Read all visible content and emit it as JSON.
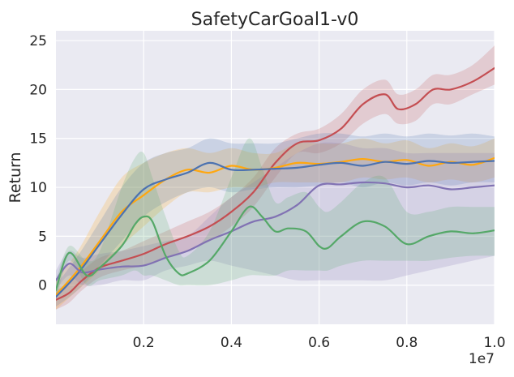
{
  "chart_data": {
    "type": "line",
    "title": "SafetyCarGoal1-v0",
    "xlabel": "",
    "ylabel": "Return",
    "x_offset_label": "1e7",
    "xlim": [
      0,
      1.0
    ],
    "ylim": [
      -4,
      26
    ],
    "xticks": [
      0.2,
      0.4,
      0.6,
      0.8,
      1.0
    ],
    "xtick_labels": [
      "0.2",
      "0.4",
      "0.6",
      "0.8",
      "1.0"
    ],
    "yticks": [
      0,
      5,
      10,
      15,
      20,
      25
    ],
    "ytick_labels": [
      "0",
      "5",
      "10",
      "15",
      "20",
      "25"
    ],
    "grid": true,
    "background": "#eaeaf2",
    "series": [
      {
        "name": "red",
        "color": "#c44e52",
        "x": [
          0,
          0.03,
          0.06,
          0.1,
          0.15,
          0.2,
          0.25,
          0.3,
          0.35,
          0.4,
          0.45,
          0.5,
          0.55,
          0.6,
          0.65,
          0.7,
          0.75,
          0.78,
          0.82,
          0.86,
          0.9,
          0.95,
          1.0
        ],
        "values": [
          -1.5,
          -0.8,
          0.5,
          1.8,
          2.5,
          3.2,
          4.2,
          5.0,
          6.0,
          7.5,
          9.5,
          12.5,
          14.5,
          14.8,
          16.0,
          18.5,
          19.5,
          18.0,
          18.5,
          20.0,
          20.0,
          20.8,
          22.2
        ],
        "lower": [
          -2.5,
          -1.8,
          -0.5,
          0.8,
          1.5,
          2.0,
          2.8,
          3.5,
          4.5,
          6.0,
          8.0,
          11.0,
          13.5,
          13.5,
          14.5,
          16.5,
          17.5,
          16.5,
          16.8,
          18.5,
          18.5,
          19.5,
          20.5
        ],
        "upper": [
          -0.5,
          0.2,
          1.5,
          2.8,
          3.5,
          4.5,
          5.5,
          6.5,
          7.5,
          9.0,
          11.0,
          14.0,
          15.5,
          16.0,
          17.5,
          20.0,
          21.0,
          19.5,
          20.0,
          21.5,
          21.5,
          22.5,
          24.5
        ]
      },
      {
        "name": "orange",
        "color": "#ffa70f",
        "x": [
          0,
          0.05,
          0.1,
          0.15,
          0.2,
          0.25,
          0.3,
          0.35,
          0.4,
          0.45,
          0.5,
          0.55,
          0.6,
          0.65,
          0.7,
          0.75,
          0.8,
          0.85,
          0.9,
          0.95,
          1.0
        ],
        "values": [
          -1.0,
          1.5,
          4.5,
          7.5,
          9.2,
          10.8,
          11.8,
          11.5,
          12.2,
          11.8,
          12.0,
          12.5,
          12.4,
          12.6,
          12.9,
          12.6,
          12.8,
          12.2,
          12.6,
          12.3,
          13.0
        ],
        "lower": [
          -2.5,
          -0.5,
          1.5,
          4.0,
          6.0,
          8.0,
          9.5,
          9.5,
          10.0,
          10.0,
          10.5,
          10.5,
          10.5,
          10.5,
          11.0,
          10.8,
          11.0,
          10.5,
          10.8,
          10.5,
          11.0
        ],
        "upper": [
          0.5,
          3.5,
          7.5,
          11.0,
          12.5,
          13.5,
          14.0,
          13.5,
          14.0,
          13.5,
          13.5,
          14.5,
          14.5,
          14.5,
          15.0,
          14.5,
          14.8,
          14.0,
          14.5,
          14.2,
          15.0
        ]
      },
      {
        "name": "blue",
        "color": "#4c72b0",
        "x": [
          0,
          0.05,
          0.1,
          0.15,
          0.2,
          0.25,
          0.3,
          0.35,
          0.4,
          0.45,
          0.5,
          0.55,
          0.6,
          0.65,
          0.7,
          0.75,
          0.8,
          0.85,
          0.9,
          0.95,
          1.0
        ],
        "values": [
          -1.2,
          1.2,
          4.2,
          7.2,
          9.8,
          10.8,
          11.5,
          12.5,
          11.8,
          11.8,
          11.9,
          12.0,
          12.3,
          12.5,
          12.2,
          12.6,
          12.4,
          12.7,
          12.5,
          12.6,
          12.7
        ],
        "lower": [
          -2.2,
          -0.5,
          2.0,
          4.5,
          7.0,
          8.5,
          9.5,
          10.0,
          9.5,
          9.8,
          10.0,
          10.0,
          10.2,
          10.5,
          10.0,
          10.5,
          10.2,
          10.5,
          10.2,
          10.5,
          10.5
        ],
        "upper": [
          0.0,
          3.0,
          6.5,
          10.0,
          12.5,
          13.5,
          14.0,
          15.0,
          14.5,
          14.5,
          14.5,
          15.0,
          15.5,
          15.5,
          15.2,
          15.5,
          15.2,
          15.5,
          15.3,
          15.5,
          15.2
        ]
      },
      {
        "name": "purple",
        "color": "#8172b3",
        "x": [
          0,
          0.03,
          0.06,
          0.1,
          0.15,
          0.2,
          0.25,
          0.3,
          0.35,
          0.4,
          0.45,
          0.5,
          0.55,
          0.6,
          0.65,
          0.7,
          0.75,
          0.8,
          0.85,
          0.9,
          0.95,
          1.0
        ],
        "values": [
          0.5,
          2.2,
          1.3,
          1.6,
          1.9,
          2.0,
          2.8,
          3.5,
          4.6,
          5.5,
          6.5,
          7.0,
          8.2,
          10.2,
          10.3,
          10.5,
          10.4,
          10.0,
          10.2,
          9.8,
          10.0,
          10.2
        ],
        "lower": [
          -0.5,
          1.0,
          0.0,
          0.0,
          0.5,
          0.5,
          1.5,
          2.0,
          2.5,
          2.0,
          1.5,
          1.0,
          0.5,
          0.5,
          0.5,
          0.5,
          0.5,
          1.0,
          1.5,
          2.0,
          2.5,
          3.0
        ],
        "upper": [
          1.5,
          3.5,
          2.8,
          3.2,
          3.5,
          4.0,
          4.5,
          5.0,
          7.0,
          9.0,
          10.5,
          12.0,
          13.5,
          14.5,
          14.5,
          14.0,
          14.0,
          13.5,
          13.5,
          13.5,
          13.5,
          13.5
        ]
      },
      {
        "name": "green",
        "color": "#55a868",
        "x": [
          0,
          0.03,
          0.07,
          0.1,
          0.15,
          0.18,
          0.2,
          0.22,
          0.25,
          0.28,
          0.3,
          0.35,
          0.4,
          0.44,
          0.47,
          0.5,
          0.53,
          0.57,
          0.6,
          0.62,
          0.65,
          0.7,
          0.75,
          0.8,
          0.85,
          0.9,
          0.95,
          1.0
        ],
        "values": [
          -0.5,
          3.3,
          1.0,
          1.8,
          4.0,
          6.2,
          7.0,
          6.5,
          3.0,
          1.2,
          1.2,
          2.5,
          5.5,
          8.0,
          7.0,
          5.5,
          5.8,
          5.5,
          4.0,
          3.8,
          5.0,
          6.5,
          6.0,
          4.2,
          5.0,
          5.5,
          5.3,
          5.6
        ],
        "lower": [
          -1.5,
          2.5,
          0.0,
          0.5,
          1.0,
          1.5,
          1.0,
          1.0,
          0.5,
          0.0,
          0.0,
          0.0,
          0.5,
          1.0,
          1.0,
          1.0,
          1.5,
          1.5,
          1.5,
          1.5,
          2.0,
          2.5,
          2.5,
          2.5,
          2.5,
          2.8,
          3.0,
          3.0
        ],
        "upper": [
          0.5,
          4.0,
          2.5,
          3.5,
          10.0,
          13.0,
          13.5,
          11.0,
          7.0,
          3.5,
          3.0,
          5.5,
          11.0,
          15.0,
          12.0,
          8.5,
          9.0,
          9.5,
          8.0,
          7.5,
          8.5,
          10.5,
          11.0,
          7.5,
          7.5,
          8.0,
          8.0,
          8.0
        ]
      }
    ]
  }
}
